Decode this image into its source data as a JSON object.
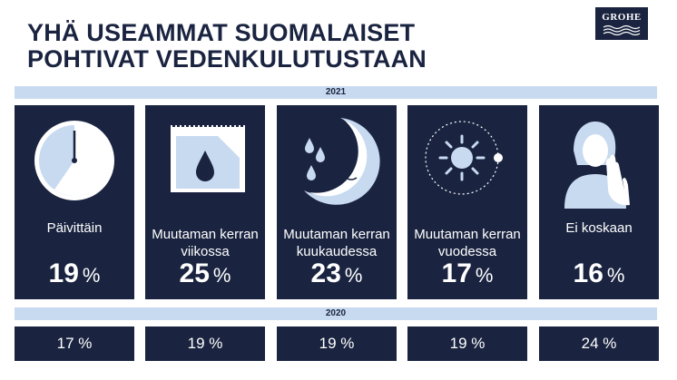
{
  "title": {
    "line1": "YHÄ USEAMMAT SUOMALAISET",
    "line2": "POHTIVAT VEDENKULUTUSTAAN"
  },
  "logo": {
    "text": "GROHE"
  },
  "year_2021": "2021",
  "year_2020": "2020",
  "cards": [
    {
      "label": "Päivittäin",
      "value": "19",
      "unit": "%",
      "icon": "clock-icon"
    },
    {
      "label": "Muutaman kerran viikossa",
      "value": "25",
      "unit": "%",
      "icon": "calendar-drop-icon"
    },
    {
      "label": "Muutaman kerran kuukaudessa",
      "value": "23",
      "unit": "%",
      "icon": "moon-drops-icon"
    },
    {
      "label": "Muutaman kerran vuodessa",
      "value": "17",
      "unit": "%",
      "icon": "sun-orbit-icon"
    },
    {
      "label": "Ei koskaan",
      "value": "16",
      "unit": "%",
      "icon": "person-stop-hand-icon"
    }
  ],
  "values_2020": [
    "17 %",
    "19 %",
    "19 %",
    "19 %",
    "24 %"
  ],
  "colors": {
    "navy": "#1a2440",
    "light_blue": "#c8daf0"
  }
}
